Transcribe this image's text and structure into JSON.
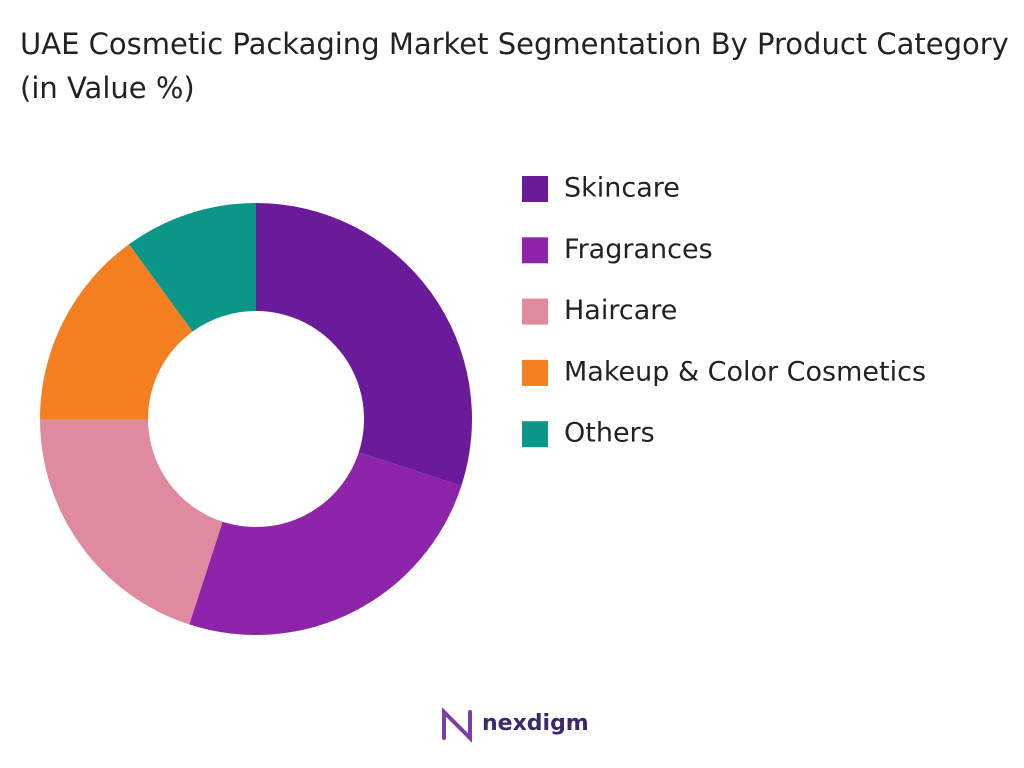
{
  "chart_data": {
    "type": "donut",
    "title": "UAE Cosmetic Packaging Market Segmentation By Product Category (in Value %)",
    "categories": [
      "Skincare",
      "Fragrances",
      "Haircare",
      "Makeup & Color Cosmetics",
      "Others"
    ],
    "values": [
      30,
      25,
      20,
      15,
      10
    ],
    "colors": [
      "#6a1b9a",
      "#8e24aa",
      "#df8a9f",
      "#f37f20",
      "#0b9688"
    ],
    "legend": "right"
  },
  "footer": {
    "brand": "nexdigm"
  }
}
